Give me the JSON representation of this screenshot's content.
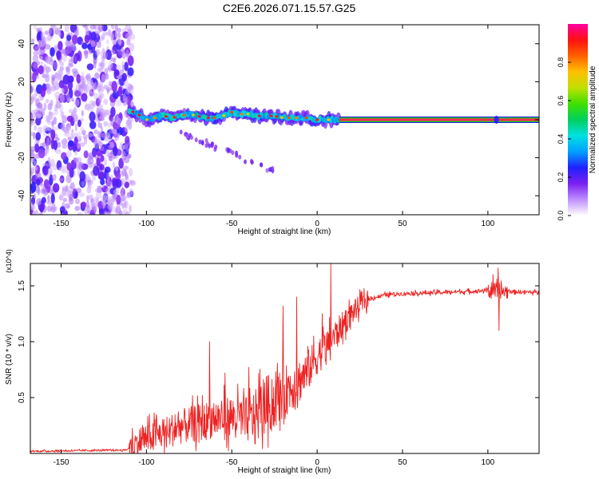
{
  "title": "C2E6.2026.071.15.57.G25",
  "colors": {
    "snr_line": "#ee2222",
    "track_core": "#ff2a4a",
    "track_band": "#20c030",
    "frame": "#000000"
  },
  "chart_data": [
    {
      "type": "heatmap",
      "title": "C2E6.2026.071.15.57.G25",
      "xlabel": "Height of straight line (km)",
      "ylabel": "Frequency (Hz)",
      "xlim": [
        -168,
        130
      ],
      "ylim": [
        -50,
        50
      ],
      "xticks": [
        -150,
        -100,
        -50,
        0,
        50,
        100
      ],
      "yticks": [
        -40,
        -20,
        0,
        20,
        40
      ],
      "colorbar": {
        "label": "Normalized spectral amplitude",
        "range": [
          0,
          1
        ],
        "ticks": [
          "0.0",
          "0.2",
          "0.4",
          "0.6",
          "0.8"
        ],
        "colormap": [
          "#ffffff",
          "#c090ff",
          "#7a20f0",
          "#2020ff",
          "#00a0ff",
          "#00e0e0",
          "#00d060",
          "#40e000",
          "#c0e000",
          "#ffc000",
          "#ff6000",
          "#ff1010",
          "#ff00a0"
        ]
      },
      "regions": [
        {
          "name": "noise",
          "x_range": [
            -168,
            -110
          ],
          "f_range": [
            -50,
            50
          ],
          "amplitude": 0.15
        },
        {
          "name": "signal-track",
          "x_range": [
            -110,
            13
          ],
          "amplitude": 0.45
        },
        {
          "name": "fringe-tail",
          "x_range": [
            -80,
            -25
          ],
          "f_range": [
            -28,
            -5
          ],
          "amplitude": 0.12
        },
        {
          "name": "steady-line",
          "x_range": [
            13,
            130
          ],
          "frequency": 0,
          "amplitude": 0.95
        }
      ],
      "track_frequency": [
        [
          -110,
          5
        ],
        [
          -105,
          3
        ],
        [
          -100,
          0
        ],
        [
          -95,
          1
        ],
        [
          -90,
          2
        ],
        [
          -85,
          1
        ],
        [
          -80,
          2
        ],
        [
          -75,
          3
        ],
        [
          -70,
          2
        ],
        [
          -65,
          1
        ],
        [
          -60,
          1
        ],
        [
          -55,
          2
        ],
        [
          -50,
          4
        ],
        [
          -45,
          3
        ],
        [
          -40,
          3
        ],
        [
          -35,
          2
        ],
        [
          -30,
          2
        ],
        [
          -25,
          2
        ],
        [
          -20,
          1
        ],
        [
          -15,
          1
        ],
        [
          -10,
          1
        ],
        [
          -5,
          1
        ],
        [
          0,
          0
        ],
        [
          5,
          0
        ],
        [
          10,
          0
        ],
        [
          13,
          0
        ]
      ]
    },
    {
      "type": "line",
      "xlabel": "Height of straight line (km)",
      "ylabel": "SNR (10 * v/v)",
      "y_multiplier": "(x10^4)",
      "xlim": [
        -168,
        130
      ],
      "ylim": [
        0,
        1.7
      ],
      "xticks": [
        -150,
        -100,
        -50,
        0,
        50,
        100
      ],
      "yticks": [
        0.5,
        1.0,
        1.5
      ],
      "series": [
        {
          "name": "SNR",
          "trend": [
            [
              -168,
              0.02
            ],
            [
              -112,
              0.03
            ],
            [
              -110,
              0.05
            ],
            [
              -100,
              0.14
            ],
            [
              -90,
              0.18
            ],
            [
              -80,
              0.24
            ],
            [
              -70,
              0.27
            ],
            [
              -60,
              0.31
            ],
            [
              -50,
              0.33
            ],
            [
              -40,
              0.3
            ],
            [
              -35,
              0.38
            ],
            [
              -30,
              0.44
            ],
            [
              -25,
              0.46
            ],
            [
              -20,
              0.55
            ],
            [
              -15,
              0.6
            ],
            [
              -10,
              0.66
            ],
            [
              -5,
              0.75
            ],
            [
              0,
              0.87
            ],
            [
              5,
              0.95
            ],
            [
              10,
              1.05
            ],
            [
              15,
              1.15
            ],
            [
              20,
              1.25
            ],
            [
              25,
              1.33
            ],
            [
              30,
              1.38
            ],
            [
              40,
              1.42
            ],
            [
              50,
              1.43
            ],
            [
              70,
              1.44
            ],
            [
              90,
              1.45
            ],
            [
              100,
              1.46
            ],
            [
              110,
              1.45
            ],
            [
              130,
              1.44
            ]
          ],
          "spikes": [
            [
              -63,
              1.0
            ],
            [
              -54,
              0.72
            ],
            [
              -40,
              0.77
            ],
            [
              -20,
              1.32
            ],
            [
              -12,
              1.4
            ],
            [
              -2,
              1.05
            ],
            [
              3,
              1.25
            ],
            [
              8,
              1.7
            ],
            [
              18,
              1.27
            ],
            [
              103,
              1.6
            ],
            [
              106,
              1.66
            ],
            [
              106.5,
              1.1
            ]
          ]
        }
      ]
    }
  ]
}
